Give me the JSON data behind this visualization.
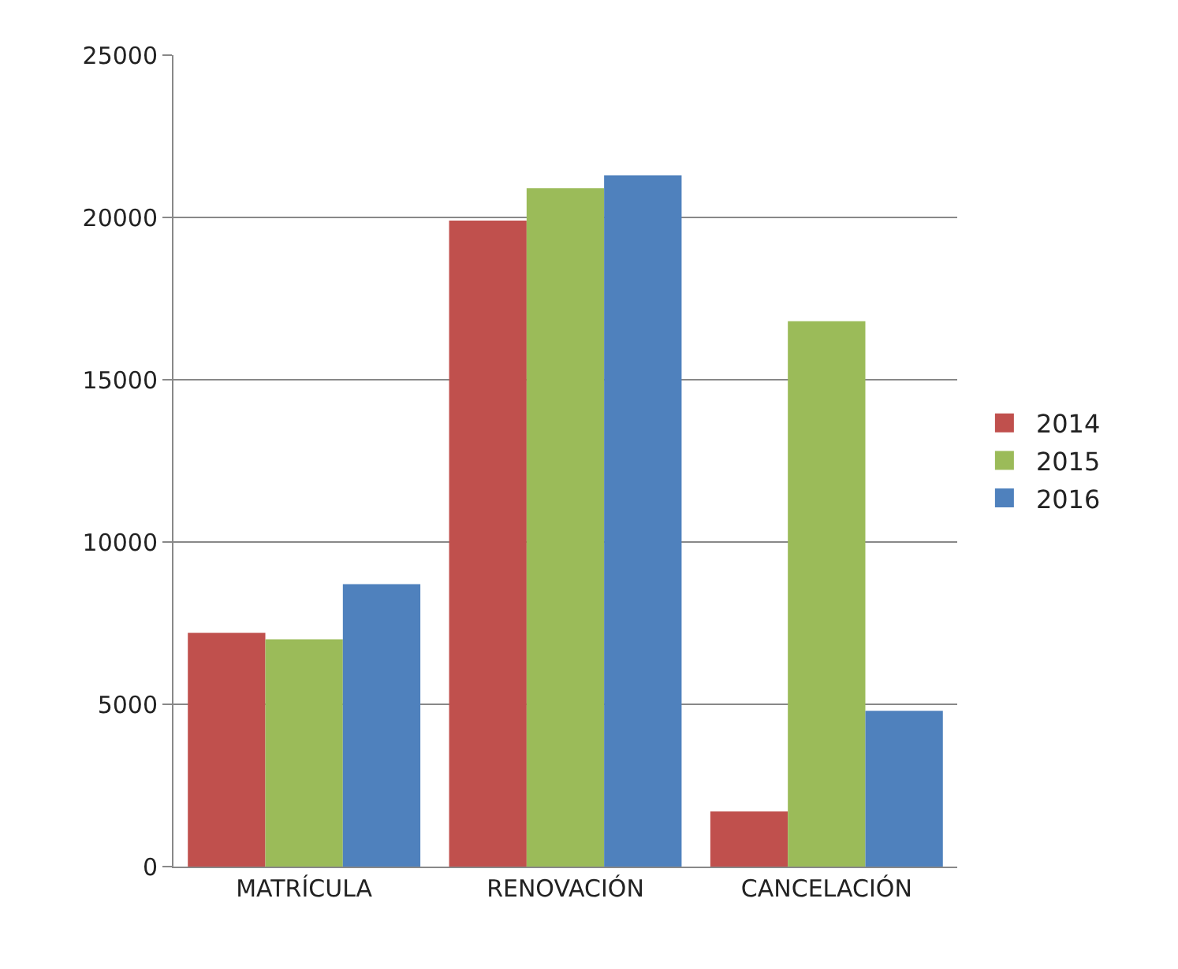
{
  "chart_data": {
    "type": "bar",
    "categories": [
      "MATRÍCULA",
      "RENOVACIÓN",
      "CANCELACIÓN"
    ],
    "series": [
      {
        "name": "2014",
        "color": "#c0504d",
        "values": [
          7200,
          19900,
          1700
        ]
      },
      {
        "name": "2015",
        "color": "#9bbb59",
        "values": [
          7000,
          20900,
          16800
        ]
      },
      {
        "name": "2016",
        "color": "#4f81bd",
        "values": [
          8700,
          21300,
          4800
        ]
      }
    ],
    "ylim": [
      0,
      25000
    ],
    "yticks": [
      0,
      5000,
      10000,
      15000,
      20000,
      25000
    ],
    "grid": "y",
    "legend": "right"
  }
}
